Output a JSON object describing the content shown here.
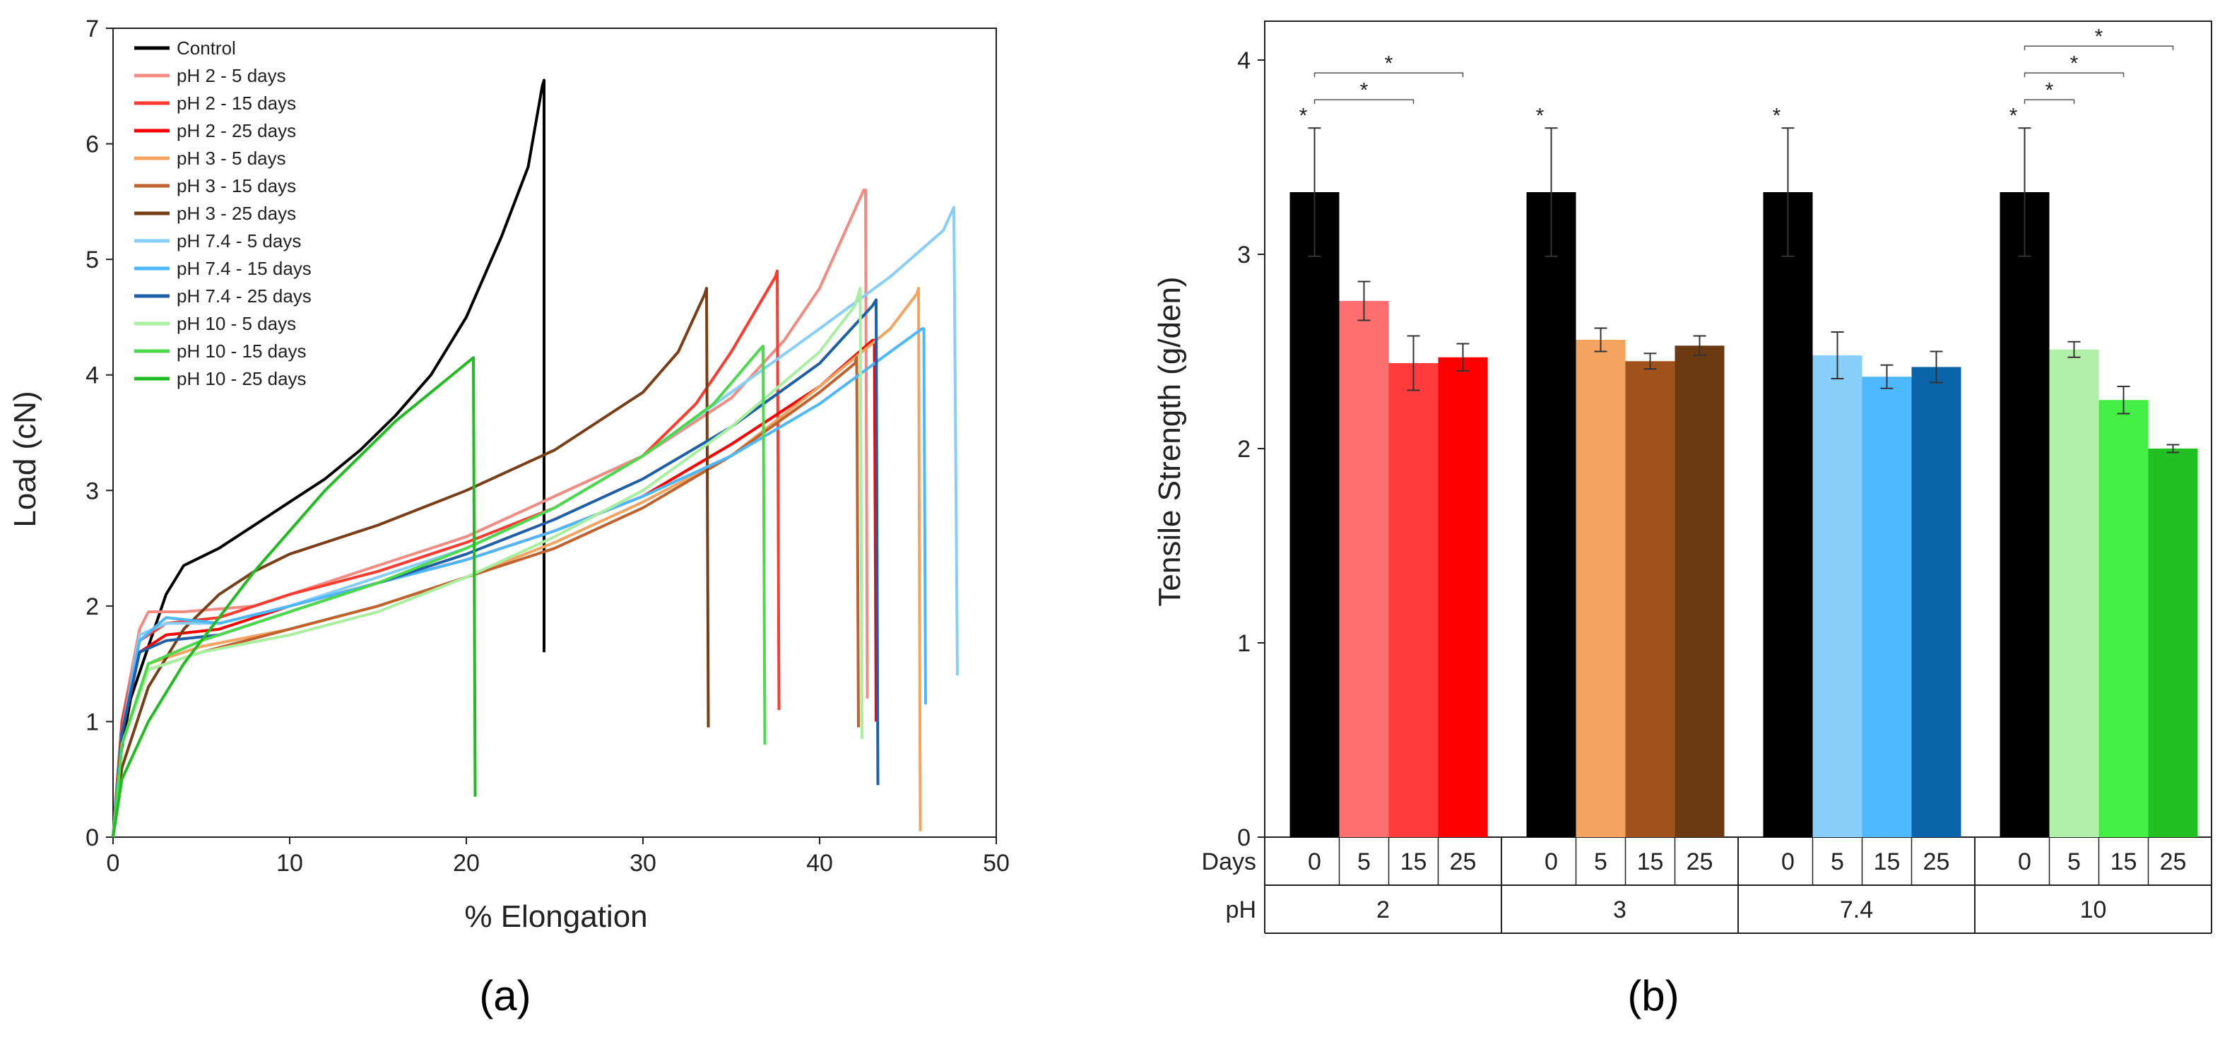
{
  "chart_data": [
    {
      "type": "line",
      "panel_label": "(a)",
      "xlabel": "% Elongation",
      "ylabel": "Load (cN)",
      "xlim": [
        0,
        50
      ],
      "ylim": [
        0,
        7
      ],
      "xticks": [
        0,
        10,
        20,
        30,
        40,
        50
      ],
      "yticks": [
        0,
        1,
        2,
        3,
        4,
        5,
        6,
        7
      ],
      "legend_position": "top-left",
      "series": [
        {
          "name": "Control",
          "color": "#000000",
          "points": [
            [
              0,
              0
            ],
            [
              0.3,
              0.6
            ],
            [
              1,
              1.2
            ],
            [
              2,
              1.65
            ],
            [
              3,
              2.1
            ],
            [
              4,
              2.35
            ],
            [
              6,
              2.5
            ],
            [
              8,
              2.7
            ],
            [
              10,
              2.9
            ],
            [
              12,
              3.1
            ],
            [
              14,
              3.35
            ],
            [
              16,
              3.65
            ],
            [
              18,
              4.0
            ],
            [
              20,
              4.5
            ],
            [
              22,
              5.2
            ],
            [
              23.5,
              5.8
            ],
            [
              24.3,
              6.5
            ],
            [
              24.4,
              6.55
            ],
            [
              24.4,
              1.6
            ]
          ]
        },
        {
          "name": "pH 2 - 5 days",
          "color": "#f28b82",
          "points": [
            [
              0,
              0
            ],
            [
              0.5,
              1.0
            ],
            [
              1.5,
              1.8
            ],
            [
              2,
              1.95
            ],
            [
              4,
              1.95
            ],
            [
              8,
              2.0
            ],
            [
              12,
              2.2
            ],
            [
              16,
              2.4
            ],
            [
              20,
              2.6
            ],
            [
              25,
              2.95
            ],
            [
              30,
              3.3
            ],
            [
              35,
              3.8
            ],
            [
              38,
              4.3
            ],
            [
              40,
              4.75
            ],
            [
              42.5,
              5.6
            ],
            [
              42.6,
              5.6
            ],
            [
              42.7,
              1.2
            ]
          ]
        },
        {
          "name": "pH 2 - 15 days",
          "color": "#ff3b30",
          "points": [
            [
              0,
              0
            ],
            [
              0.5,
              1.0
            ],
            [
              1.5,
              1.7
            ],
            [
              3,
              1.85
            ],
            [
              6,
              1.9
            ],
            [
              10,
              2.1
            ],
            [
              15,
              2.3
            ],
            [
              20,
              2.55
            ],
            [
              25,
              2.85
            ],
            [
              30,
              3.3
            ],
            [
              33,
              3.75
            ],
            [
              35,
              4.2
            ],
            [
              37.5,
              4.85
            ],
            [
              37.6,
              4.9
            ],
            [
              37.7,
              1.1
            ]
          ]
        },
        {
          "name": "pH 2 - 25 days",
          "color": "#ff0000",
          "points": [
            [
              0,
              0
            ],
            [
              0.5,
              0.9
            ],
            [
              1.5,
              1.6
            ],
            [
              3,
              1.75
            ],
            [
              6,
              1.8
            ],
            [
              10,
              2.0
            ],
            [
              15,
              2.2
            ],
            [
              20,
              2.4
            ],
            [
              25,
              2.65
            ],
            [
              30,
              2.95
            ],
            [
              35,
              3.4
            ],
            [
              40,
              3.9
            ],
            [
              43,
              4.3
            ],
            [
              43.1,
              4.3
            ],
            [
              43.2,
              1.0
            ]
          ]
        },
        {
          "name": "pH 3 - 5 days",
          "color": "#f4a460",
          "points": [
            [
              0,
              0
            ],
            [
              0.5,
              0.8
            ],
            [
              2,
              1.5
            ],
            [
              5,
              1.65
            ],
            [
              10,
              1.8
            ],
            [
              15,
              2.0
            ],
            [
              20,
              2.25
            ],
            [
              25,
              2.55
            ],
            [
              30,
              2.9
            ],
            [
              35,
              3.3
            ],
            [
              40,
              3.9
            ],
            [
              44,
              4.4
            ],
            [
              45.5,
              4.7
            ],
            [
              45.6,
              4.75
            ],
            [
              45.7,
              0.05
            ]
          ]
        },
        {
          "name": "pH 3 - 15 days",
          "color": "#c0622d",
          "points": [
            [
              0,
              0
            ],
            [
              0.5,
              0.8
            ],
            [
              2,
              1.45
            ],
            [
              5,
              1.6
            ],
            [
              10,
              1.8
            ],
            [
              15,
              2.0
            ],
            [
              20,
              2.25
            ],
            [
              25,
              2.5
            ],
            [
              30,
              2.85
            ],
            [
              35,
              3.3
            ],
            [
              40,
              3.85
            ],
            [
              42,
              4.1
            ],
            [
              42.1,
              4.15
            ],
            [
              42.2,
              0.95
            ]
          ]
        },
        {
          "name": "pH 3 - 25 days",
          "color": "#7a3e16",
          "points": [
            [
              0,
              0
            ],
            [
              0.5,
              0.6
            ],
            [
              2,
              1.3
            ],
            [
              4,
              1.8
            ],
            [
              6,
              2.1
            ],
            [
              8,
              2.3
            ],
            [
              10,
              2.45
            ],
            [
              15,
              2.7
            ],
            [
              20,
              3.0
            ],
            [
              25,
              3.35
            ],
            [
              30,
              3.85
            ],
            [
              32,
              4.2
            ],
            [
              33.5,
              4.7
            ],
            [
              33.6,
              4.75
            ],
            [
              33.7,
              0.95
            ]
          ]
        },
        {
          "name": "pH 7.4 - 5 days",
          "color": "#87cefa",
          "points": [
            [
              0,
              0
            ],
            [
              0.5,
              0.9
            ],
            [
              1.5,
              1.75
            ],
            [
              3,
              1.85
            ],
            [
              6,
              1.85
            ],
            [
              10,
              2.0
            ],
            [
              15,
              2.25
            ],
            [
              20,
              2.5
            ],
            [
              25,
              2.85
            ],
            [
              30,
              3.3
            ],
            [
              35,
              3.85
            ],
            [
              40,
              4.4
            ],
            [
              44,
              4.85
            ],
            [
              47,
              5.25
            ],
            [
              47.6,
              5.45
            ],
            [
              47.8,
              1.4
            ]
          ]
        },
        {
          "name": "pH 7.4 - 15 days",
          "color": "#4db8ff",
          "points": [
            [
              0,
              0
            ],
            [
              0.5,
              0.9
            ],
            [
              1.5,
              1.7
            ],
            [
              3,
              1.9
            ],
            [
              6,
              1.85
            ],
            [
              10,
              2.0
            ],
            [
              15,
              2.2
            ],
            [
              20,
              2.4
            ],
            [
              25,
              2.65
            ],
            [
              30,
              2.95
            ],
            [
              35,
              3.3
            ],
            [
              40,
              3.75
            ],
            [
              44,
              4.2
            ],
            [
              45.8,
              4.4
            ],
            [
              45.9,
              4.4
            ],
            [
              46.0,
              1.15
            ]
          ]
        },
        {
          "name": "pH 7.4 - 25 days",
          "color": "#1f5fa8",
          "points": [
            [
              0,
              0
            ],
            [
              0.5,
              0.9
            ],
            [
              1.5,
              1.6
            ],
            [
              3,
              1.7
            ],
            [
              6,
              1.75
            ],
            [
              10,
              1.95
            ],
            [
              15,
              2.2
            ],
            [
              20,
              2.45
            ],
            [
              25,
              2.75
            ],
            [
              30,
              3.1
            ],
            [
              35,
              3.55
            ],
            [
              40,
              4.1
            ],
            [
              43,
              4.6
            ],
            [
              43.2,
              4.65
            ],
            [
              43.3,
              0.45
            ]
          ]
        },
        {
          "name": "pH 10 - 5 days",
          "color": "#a8f0a0",
          "points": [
            [
              0,
              0
            ],
            [
              0.5,
              0.8
            ],
            [
              2,
              1.45
            ],
            [
              5,
              1.6
            ],
            [
              10,
              1.75
            ],
            [
              15,
              1.95
            ],
            [
              20,
              2.25
            ],
            [
              25,
              2.6
            ],
            [
              30,
              3.0
            ],
            [
              35,
              3.55
            ],
            [
              40,
              4.2
            ],
            [
              42,
              4.6
            ],
            [
              42.3,
              4.75
            ],
            [
              42.4,
              0.85
            ]
          ]
        },
        {
          "name": "pH 10 - 15 days",
          "color": "#4cd94c",
          "points": [
            [
              0,
              0
            ],
            [
              0.5,
              0.8
            ],
            [
              2,
              1.5
            ],
            [
              5,
              1.7
            ],
            [
              10,
              1.95
            ],
            [
              15,
              2.2
            ],
            [
              20,
              2.5
            ],
            [
              25,
              2.85
            ],
            [
              30,
              3.3
            ],
            [
              34,
              3.75
            ],
            [
              36.5,
              4.2
            ],
            [
              36.8,
              4.25
            ],
            [
              36.9,
              0.8
            ]
          ]
        },
        {
          "name": "pH 10 - 25 days",
          "color": "#22bb22",
          "points": [
            [
              0,
              0
            ],
            [
              0.5,
              0.5
            ],
            [
              2,
              1.0
            ],
            [
              4,
              1.5
            ],
            [
              6,
              1.9
            ],
            [
              8,
              2.3
            ],
            [
              10,
              2.65
            ],
            [
              12,
              3.0
            ],
            [
              14,
              3.3
            ],
            [
              16,
              3.6
            ],
            [
              18,
              3.85
            ],
            [
              20,
              4.1
            ],
            [
              20.4,
              4.15
            ],
            [
              20.5,
              0.35
            ]
          ]
        }
      ]
    },
    {
      "type": "bar",
      "panel_label": "(b)",
      "ylabel": "Tensile Strength (g/den)",
      "ylim": [
        0,
        4.2
      ],
      "yticks": [
        0,
        1,
        2,
        3,
        4
      ],
      "row_labels": {
        "days": "Days",
        "ph": "pH"
      },
      "groups": [
        {
          "ph": "2",
          "bars": [
            {
              "day": "0",
              "value": 3.32,
              "err": 0.33,
              "color": "#000000"
            },
            {
              "day": "5",
              "value": 2.76,
              "err": 0.1,
              "color": "#ff6f6f"
            },
            {
              "day": "15",
              "value": 2.44,
              "err": 0.14,
              "color": "#ff3b3b"
            },
            {
              "day": "25",
              "value": 2.47,
              "err": 0.07,
              "color": "#ff0000"
            }
          ]
        },
        {
          "ph": "3",
          "bars": [
            {
              "day": "0",
              "value": 3.32,
              "err": 0.33,
              "color": "#000000"
            },
            {
              "day": "5",
              "value": 2.56,
              "err": 0.06,
              "color": "#f4a460"
            },
            {
              "day": "15",
              "value": 2.45,
              "err": 0.04,
              "color": "#a0521a"
            },
            {
              "day": "25",
              "value": 2.53,
              "err": 0.05,
              "color": "#6b3a12"
            }
          ]
        },
        {
          "ph": "7.4",
          "bars": [
            {
              "day": "0",
              "value": 3.32,
              "err": 0.33,
              "color": "#000000"
            },
            {
              "day": "5",
              "value": 2.48,
              "err": 0.12,
              "color": "#87cefa"
            },
            {
              "day": "15",
              "value": 2.37,
              "err": 0.06,
              "color": "#4db8ff"
            },
            {
              "day": "25",
              "value": 2.42,
              "err": 0.08,
              "color": "#0b63a8"
            }
          ]
        },
        {
          "ph": "10",
          "bars": [
            {
              "day": "0",
              "value": 3.32,
              "err": 0.33,
              "color": "#000000"
            },
            {
              "day": "5",
              "value": 2.51,
              "err": 0.04,
              "color": "#b0f0a8"
            },
            {
              "day": "15",
              "value": 2.25,
              "err": 0.07,
              "color": "#44ee44"
            },
            {
              "day": "25",
              "value": 2.0,
              "err": 0.02,
              "color": "#22c022"
            }
          ]
        }
      ],
      "significance": [
        {
          "group": 0,
          "bar": 0,
          "label": "*"
        },
        {
          "group": 1,
          "bar": 0,
          "label": "*"
        },
        {
          "group": 2,
          "bar": 0,
          "label": "*"
        },
        {
          "group": 3,
          "bar": 0,
          "label": "*"
        },
        {
          "group": 0,
          "from": 0,
          "to": 2,
          "level": 0,
          "label": "*"
        },
        {
          "group": 0,
          "from": 0,
          "to": 3,
          "level": 1,
          "label": "*"
        },
        {
          "group": 3,
          "from": 0,
          "to": 1,
          "level": 0,
          "label": "*"
        },
        {
          "group": 3,
          "from": 0,
          "to": 2,
          "level": 1,
          "label": "*"
        },
        {
          "group": 3,
          "from": 0,
          "to": 3,
          "level": 2,
          "label": "*"
        }
      ]
    }
  ]
}
